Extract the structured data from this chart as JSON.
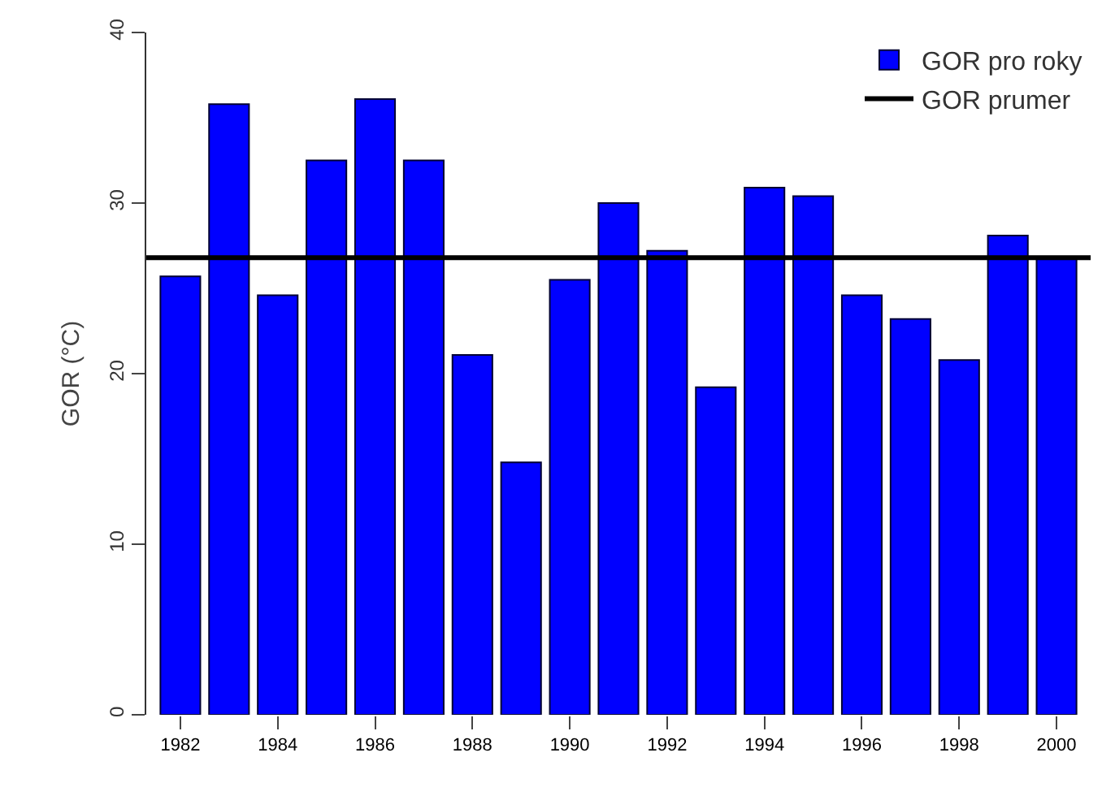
{
  "chart_data": {
    "type": "bar",
    "ylabel": "GOR (°C)",
    "categories": [
      "1982",
      null,
      "1984",
      null,
      "1986",
      null,
      "1988",
      null,
      "1990",
      null,
      "1992",
      null,
      "1994",
      null,
      "1996",
      null,
      "1998",
      null,
      "2000"
    ],
    "series": [
      {
        "name": "GOR pro roky",
        "color": "#0000ff",
        "values": [
          25.7,
          35.8,
          24.6,
          32.5,
          36.1,
          32.5,
          21.1,
          14.8,
          25.5,
          30.0,
          27.2,
          19.2,
          30.9,
          30.4,
          24.6,
          23.2,
          20.8,
          28.1,
          26.8
        ]
      }
    ],
    "ref_lines": [
      {
        "axis": "y",
        "value": 26.8,
        "label": "GOR prumer",
        "color": "#000000",
        "line_style": "solid"
      }
    ],
    "ylim": [
      0,
      40
    ],
    "yticks": [
      0,
      10,
      20,
      30,
      40
    ],
    "legend": "top right"
  }
}
